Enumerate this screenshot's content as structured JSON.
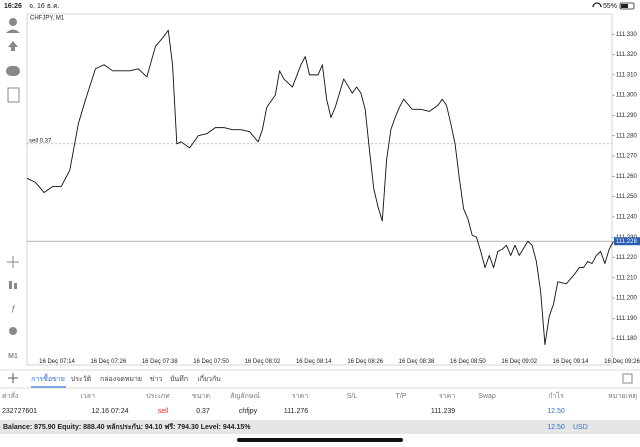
{
  "status_bar": {
    "time": "16:26",
    "date": "จ. 16 ธ.ค.",
    "battery": "55%"
  },
  "chart_data": {
    "type": "line",
    "title": "CHFJPY, M1",
    "timeframe_button": "M1",
    "color": "#111111",
    "x": [
      427,
      429,
      431,
      433,
      435,
      437,
      439,
      441,
      443,
      445,
      447,
      449,
      451,
      453,
      455,
      457,
      459,
      460,
      461,
      462,
      463,
      465,
      467,
      469,
      471,
      473,
      475,
      477,
      479,
      481,
      482,
      483,
      485,
      486,
      487,
      489,
      491,
      492,
      493,
      495,
      496,
      497,
      498,
      499,
      501,
      503,
      504,
      505,
      506,
      507,
      508,
      509,
      510,
      511,
      512,
      513,
      514,
      515,
      517,
      519,
      521,
      523,
      524,
      525,
      526,
      527,
      528,
      529,
      530,
      531,
      532,
      533,
      534,
      535,
      536,
      537,
      538,
      539,
      540,
      541,
      542,
      544,
      545,
      546,
      547,
      548,
      549,
      550,
      551,
      553,
      555,
      556,
      557,
      558,
      559,
      560,
      561,
      562,
      563,
      564
    ],
    "values": [
      111.259,
      111.257,
      111.252,
      111.255,
      111.255,
      111.263,
      111.286,
      111.3,
      111.313,
      111.315,
      111.312,
      111.312,
      111.312,
      111.313,
      111.309,
      111.324,
      111.329,
      111.332,
      111.315,
      111.276,
      111.277,
      111.274,
      111.28,
      111.281,
      111.284,
      111.284,
      111.283,
      111.283,
      111.282,
      111.277,
      111.283,
      111.294,
      111.3,
      111.312,
      111.308,
      111.304,
      111.315,
      111.319,
      111.31,
      111.31,
      111.315,
      111.298,
      111.289,
      111.294,
      111.308,
      111.301,
      111.304,
      111.301,
      111.293,
      111.273,
      111.254,
      111.245,
      111.238,
      111.268,
      111.283,
      111.289,
      111.294,
      111.298,
      111.293,
      111.293,
      111.292,
      111.295,
      111.298,
      111.295,
      111.286,
      111.276,
      111.259,
      111.244,
      111.239,
      111.231,
      111.23,
      111.223,
      111.215,
      111.221,
      111.215,
      111.223,
      111.224,
      111.226,
      111.221,
      111.226,
      111.221,
      111.228,
      111.226,
      111.218,
      111.203,
      111.177,
      111.191,
      111.197,
      111.208,
      111.207,
      111.212,
      111.215,
      111.215,
      111.218,
      111.217,
      111.221,
      111.223,
      111.217,
      111.224,
      111.228
    ],
    "xlim": [
      427,
      566
    ],
    "xticks": [
      {
        "value": 434,
        "label": "16 Dec 07:14"
      },
      {
        "value": 446,
        "label": "16 Dec 07:26"
      },
      {
        "value": 458,
        "label": "16 Dec 07:38"
      },
      {
        "value": 470,
        "label": "16 Dec 07:50"
      },
      {
        "value": 482,
        "label": "16 Dec 08:02"
      },
      {
        "value": 494,
        "label": "16 Dec 08:14"
      },
      {
        "value": 506,
        "label": "16 Dec 08:26"
      },
      {
        "value": 518,
        "label": "16 Dec 08:38"
      },
      {
        "value": 530,
        "label": "16 Dec 08:50"
      },
      {
        "value": 542,
        "label": "16 Dec 09:02"
      },
      {
        "value": 554,
        "label": "16 Dec 09:14"
      },
      {
        "value": 566,
        "label": "16 Dec 09:26"
      }
    ],
    "ylim": [
      111.167,
      111.34
    ],
    "yticks": [
      {
        "value": 111.33,
        "label": "111.330"
      },
      {
        "value": 111.32,
        "label": "111.320"
      },
      {
        "value": 111.31,
        "label": "111.310"
      },
      {
        "value": 111.3,
        "label": "111.300"
      },
      {
        "value": 111.29,
        "label": "111.290"
      },
      {
        "value": 111.28,
        "label": "111.280"
      },
      {
        "value": 111.27,
        "label": "111.270"
      },
      {
        "value": 111.26,
        "label": "111.260"
      },
      {
        "value": 111.25,
        "label": "111.250"
      },
      {
        "value": 111.24,
        "label": "111.240"
      },
      {
        "value": 111.23,
        "label": "111.230"
      },
      {
        "value": 111.22,
        "label": "111.220"
      },
      {
        "value": 111.21,
        "label": "111.210"
      },
      {
        "value": 111.2,
        "label": "111.200"
      },
      {
        "value": 111.19,
        "label": "111.190"
      },
      {
        "value": 111.18,
        "label": "111.180"
      }
    ],
    "current_price": {
      "value": 111.228,
      "label": "111.228"
    },
    "order_line": {
      "value": 111.276,
      "label": "sell 0.37"
    }
  },
  "tabs": [
    "การซื้อขาย",
    "ประวัติ",
    "กล่องจดหมาย",
    "ข่าว",
    "บันทึก",
    "เกี่ยวกับ"
  ],
  "table": {
    "headers": [
      "ค่าสั่ง",
      "เวลา",
      "ประเภท",
      "ขนาด",
      "สัญลักษณ์",
      "ราคา",
      "S/L",
      "T/P",
      "ราคา",
      "Swap",
      "กำไร",
      "หมายเหตุ"
    ],
    "positions": [
      {
        "order": "232727601",
        "time": "12.16 07:24",
        "type": "sell",
        "volume": "0.37",
        "symbol": "chfjpy",
        "open_price": "111.276",
        "current_price": "111.239",
        "profit": "12.50"
      }
    ]
  },
  "footer": {
    "summary": "Balance: 875.90 Equity: 888.40 หลักประกัน: 94.10 ฟรี: 794.30 Level: 944.15%",
    "profit": "12.50",
    "currency": "USD"
  }
}
